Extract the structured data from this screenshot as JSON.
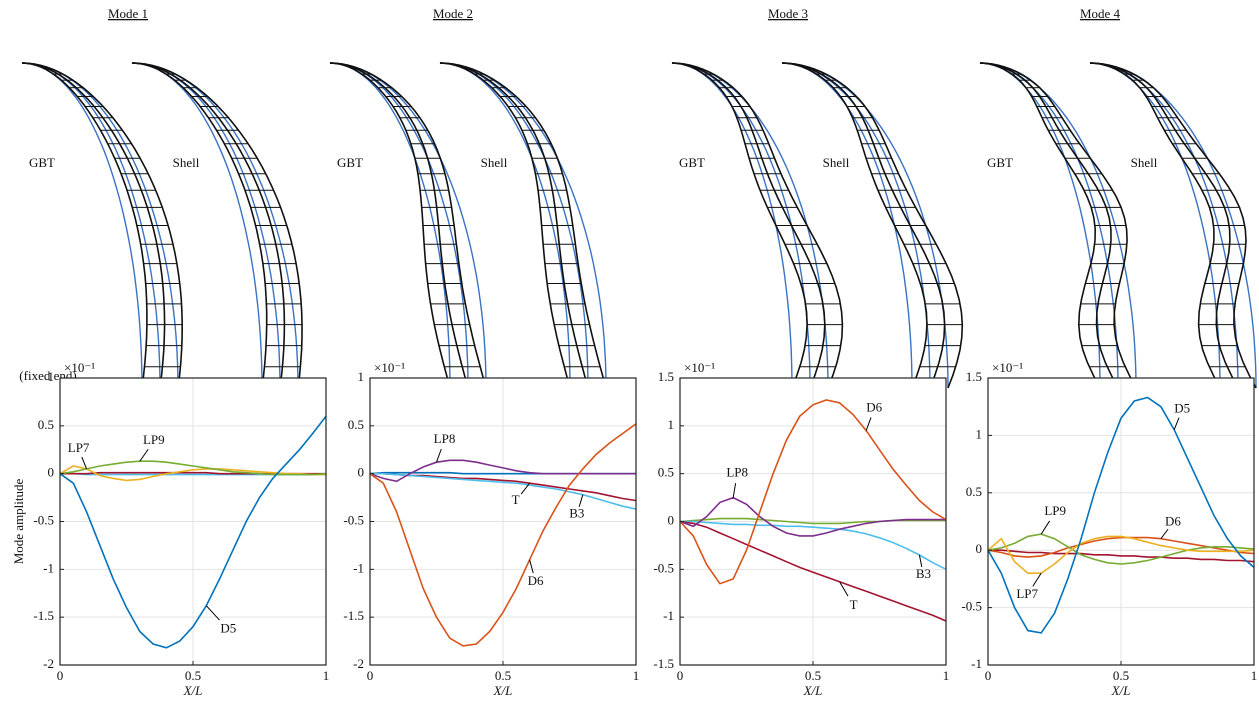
{
  "chart_data": [
    {
      "type": "line",
      "title": "Mode 1",
      "annotations": [
        "GBT",
        "Shell",
        "(fixed end)"
      ],
      "y_multiplier": "×10⁻¹",
      "xlabel": "X/L",
      "ylabel": "Mode amplitude",
      "grid": true,
      "x": [
        0,
        0.05,
        0.1,
        0.15,
        0.2,
        0.25,
        0.3,
        0.35,
        0.4,
        0.45,
        0.5,
        0.55,
        0.6,
        0.65,
        0.7,
        0.75,
        0.8,
        0.85,
        0.9,
        0.95,
        1
      ],
      "xlim": [
        0,
        1
      ],
      "xticks": [
        0,
        0.5,
        1
      ],
      "ylim": [
        -2,
        1
      ],
      "yticks": [
        -2,
        -1.5,
        -1,
        -0.5,
        0,
        0.5,
        1
      ],
      "series": [
        {
          "color": "#4DBEEE",
          "values": [
            0,
            0,
            -0.01,
            -0.01,
            -0.01,
            -0.01,
            -0.01,
            -0.01,
            -0.01,
            -0.01,
            -0.01,
            -0.01,
            -0.01,
            -0.01,
            -0.01,
            -0.01,
            -0.01,
            -0.01,
            -0.01,
            -0.01,
            -0.01
          ]
        },
        {
          "color": "#A2142F",
          "values": [
            0,
            0,
            0,
            0.01,
            0.01,
            0.01,
            0.01,
            0.01,
            0.01,
            0.01,
            0.01,
            0.01,
            0,
            0,
            0,
            0,
            0,
            0,
            0,
            0,
            0
          ]
        },
        {
          "name": "LP7",
          "color": "#EDB120",
          "values": [
            0,
            0.08,
            0.05,
            -0.02,
            -0.05,
            -0.07,
            -0.06,
            -0.03,
            0,
            0.02,
            0.04,
            0.05,
            0.05,
            0.04,
            0.03,
            0.02,
            0.01,
            0,
            0,
            -0.01,
            -0.01
          ]
        },
        {
          "name": "LP9",
          "color": "#77AC30",
          "values": [
            0,
            0.02,
            0.05,
            0.08,
            0.1,
            0.12,
            0.13,
            0.13,
            0.12,
            0.1,
            0.08,
            0.06,
            0.04,
            0.02,
            0.01,
            0,
            -0.01,
            -0.01,
            -0.01,
            -0.01,
            0
          ]
        },
        {
          "name": "D5",
          "color": "#0072BD",
          "values": [
            0,
            -0.1,
            -0.4,
            -0.75,
            -1.1,
            -1.4,
            -1.65,
            -1.78,
            -1.82,
            -1.75,
            -1.6,
            -1.38,
            -1.1,
            -0.8,
            -0.5,
            -0.25,
            -0.05,
            0.1,
            0.25,
            0.42,
            0.6
          ]
        }
      ]
    },
    {
      "type": "line",
      "title": "Mode 2",
      "annotations": [
        "GBT",
        "Shell"
      ],
      "y_multiplier": "×10⁻¹",
      "xlabel": "X/L",
      "grid": true,
      "x": [
        0,
        0.05,
        0.1,
        0.15,
        0.2,
        0.25,
        0.3,
        0.35,
        0.4,
        0.45,
        0.5,
        0.55,
        0.6,
        0.65,
        0.7,
        0.75,
        0.8,
        0.85,
        0.9,
        0.95,
        1
      ],
      "xlim": [
        0,
        1
      ],
      "xticks": [
        0,
        0.5,
        1
      ],
      "ylim": [
        -2,
        1
      ],
      "yticks": [
        -2,
        -1.5,
        -1,
        -0.5,
        0,
        0.5,
        1
      ],
      "series": [
        {
          "color": "#0072BD",
          "values": [
            0,
            0.01,
            0.01,
            0.01,
            0.01,
            0.01,
            0.01,
            0,
            0,
            0,
            0,
            0,
            0,
            0,
            0,
            0,
            0,
            0,
            0,
            0,
            0
          ]
        },
        {
          "name": "T",
          "color": "#A2142F",
          "values": [
            0,
            0,
            -0.01,
            -0.02,
            -0.02,
            -0.03,
            -0.04,
            -0.05,
            -0.05,
            -0.06,
            -0.07,
            -0.08,
            -0.1,
            -0.12,
            -0.14,
            -0.16,
            -0.18,
            -0.2,
            -0.23,
            -0.26,
            -0.28
          ]
        },
        {
          "name": "B3",
          "color": "#4DBEEE",
          "values": [
            0,
            0,
            -0.01,
            -0.02,
            -0.03,
            -0.04,
            -0.05,
            -0.06,
            -0.07,
            -0.08,
            -0.09,
            -0.1,
            -0.12,
            -0.14,
            -0.16,
            -0.19,
            -0.22,
            -0.26,
            -0.3,
            -0.34,
            -0.37
          ]
        },
        {
          "name": "LP8",
          "color": "#7E2F8E",
          "values": [
            0,
            -0.05,
            -0.08,
            0,
            0.07,
            0.12,
            0.14,
            0.14,
            0.12,
            0.09,
            0.06,
            0.03,
            0.01,
            0,
            0,
            0,
            0,
            0,
            0,
            0,
            0
          ]
        },
        {
          "name": "D6",
          "color": "#D95319",
          "values": [
            0,
            -0.1,
            -0.4,
            -0.8,
            -1.2,
            -1.5,
            -1.72,
            -1.8,
            -1.78,
            -1.65,
            -1.45,
            -1.2,
            -0.9,
            -0.6,
            -0.35,
            -0.12,
            0.05,
            0.2,
            0.32,
            0.42,
            0.52
          ]
        }
      ]
    },
    {
      "type": "line",
      "title": "Mode 3",
      "annotations": [
        "GBT",
        "Shell"
      ],
      "y_multiplier": "×10⁻¹",
      "xlabel": "X/L",
      "grid": true,
      "x": [
        0,
        0.05,
        0.1,
        0.15,
        0.2,
        0.25,
        0.3,
        0.35,
        0.4,
        0.45,
        0.5,
        0.55,
        0.6,
        0.65,
        0.7,
        0.75,
        0.8,
        0.85,
        0.9,
        0.95,
        1
      ],
      "xlim": [
        0,
        1
      ],
      "xticks": [
        0,
        0.5,
        1
      ],
      "ylim": [
        -1.5,
        1.5
      ],
      "yticks": [
        -1.5,
        -1,
        -0.5,
        0,
        0.5,
        1,
        1.5
      ],
      "series": [
        {
          "color": "#77AC30",
          "values": [
            0,
            0.01,
            0.02,
            0.03,
            0.03,
            0.03,
            0.02,
            0.01,
            0,
            -0.01,
            -0.02,
            -0.02,
            -0.02,
            -0.01,
            0,
            0,
            0.01,
            0.01,
            0.01,
            0.01,
            0.01
          ]
        },
        {
          "name": "B3",
          "color": "#4DBEEE",
          "values": [
            0,
            0,
            -0.01,
            -0.02,
            -0.03,
            -0.03,
            -0.04,
            -0.04,
            -0.05,
            -0.05,
            -0.06,
            -0.07,
            -0.08,
            -0.1,
            -0.13,
            -0.17,
            -0.22,
            -0.28,
            -0.35,
            -0.43,
            -0.5
          ]
        },
        {
          "name": "T",
          "color": "#A2142F",
          "values": [
            0,
            -0.02,
            -0.06,
            -0.12,
            -0.18,
            -0.24,
            -0.3,
            -0.36,
            -0.42,
            -0.48,
            -0.53,
            -0.58,
            -0.63,
            -0.68,
            -0.73,
            -0.78,
            -0.83,
            -0.88,
            -0.93,
            -0.98,
            -1.04
          ]
        },
        {
          "name": "LP8",
          "color": "#7E2F8E",
          "values": [
            0,
            -0.05,
            0.05,
            0.2,
            0.25,
            0.18,
            0.05,
            -0.05,
            -0.12,
            -0.15,
            -0.15,
            -0.12,
            -0.08,
            -0.05,
            -0.02,
            0,
            0.01,
            0.02,
            0.02,
            0.02,
            0.02
          ]
        },
        {
          "name": "D6",
          "color": "#D95319",
          "values": [
            0,
            -0.15,
            -0.45,
            -0.65,
            -0.6,
            -0.3,
            0.1,
            0.5,
            0.85,
            1.1,
            1.22,
            1.27,
            1.24,
            1.12,
            0.95,
            0.75,
            0.55,
            0.38,
            0.22,
            0.1,
            0.02
          ]
        }
      ]
    },
    {
      "type": "line",
      "title": "Mode 4",
      "annotations": [
        "GBT",
        "Shell"
      ],
      "y_multiplier": "×10⁻¹",
      "xlabel": "X/L",
      "grid": true,
      "x": [
        0,
        0.05,
        0.1,
        0.15,
        0.2,
        0.25,
        0.3,
        0.35,
        0.4,
        0.45,
        0.5,
        0.55,
        0.6,
        0.65,
        0.7,
        0.75,
        0.8,
        0.85,
        0.9,
        0.95,
        1
      ],
      "xlim": [
        0,
        1
      ],
      "xticks": [
        0,
        0.5,
        1
      ],
      "ylim": [
        -1,
        1.5
      ],
      "yticks": [
        -1,
        -0.5,
        0,
        0.5,
        1,
        1.5
      ],
      "series": [
        {
          "color": "#A2142F",
          "values": [
            0,
            0,
            -0.01,
            -0.02,
            -0.02,
            -0.03,
            -0.03,
            -0.03,
            -0.04,
            -0.04,
            -0.05,
            -0.05,
            -0.06,
            -0.06,
            -0.07,
            -0.07,
            -0.08,
            -0.08,
            -0.09,
            -0.09,
            -0.1
          ]
        },
        {
          "name": "D6",
          "color": "#D95319",
          "values": [
            0,
            -0.02,
            -0.05,
            -0.06,
            -0.05,
            -0.02,
            0.02,
            0.05,
            0.08,
            0.1,
            0.11,
            0.11,
            0.11,
            0.1,
            0.08,
            0.06,
            0.04,
            0.02,
            0,
            -0.02,
            -0.03
          ]
        },
        {
          "name": "LP9",
          "color": "#77AC30",
          "values": [
            0,
            0.02,
            0.06,
            0.12,
            0.14,
            0.1,
            0.03,
            -0.04,
            -0.08,
            -0.11,
            -0.12,
            -0.11,
            -0.09,
            -0.06,
            -0.03,
            0,
            0.02,
            0.03,
            0.03,
            0.02,
            0.01
          ]
        },
        {
          "name": "LP7",
          "color": "#EDB120",
          "values": [
            0,
            0.1,
            -0.1,
            -0.2,
            -0.2,
            -0.12,
            -0.02,
            0.06,
            0.1,
            0.12,
            0.12,
            0.1,
            0.07,
            0.04,
            0.02,
            0,
            -0.01,
            -0.01,
            -0.01,
            -0.01,
            0
          ]
        },
        {
          "name": "D5",
          "color": "#0072BD",
          "values": [
            0,
            -0.2,
            -0.5,
            -0.7,
            -0.72,
            -0.55,
            -0.25,
            0.1,
            0.5,
            0.85,
            1.15,
            1.3,
            1.33,
            1.25,
            1.05,
            0.8,
            0.55,
            0.3,
            0.1,
            -0.05,
            -0.15
          ]
        }
      ]
    }
  ]
}
